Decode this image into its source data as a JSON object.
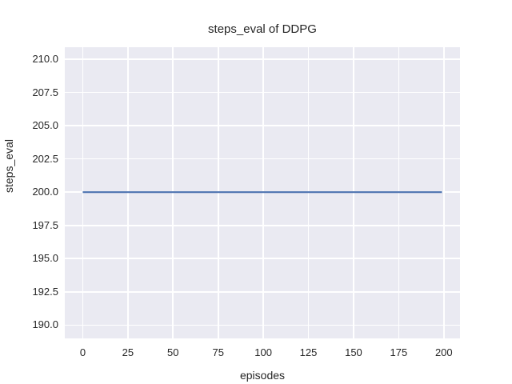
{
  "chart_data": {
    "type": "line",
    "title": "steps_eval of DDPG",
    "xlabel": "episodes",
    "ylabel": "steps_eval",
    "series": [
      {
        "name": "DDPG",
        "x": [
          0,
          199
        ],
        "y": [
          200.0,
          200.0
        ],
        "color": "#4c72b0",
        "linewidth": 2.2
      }
    ],
    "xlim": [
      -9.95,
      208.95
    ],
    "ylim": [
      189.0,
      210.9
    ],
    "xticks": {
      "values": [
        0,
        25,
        50,
        75,
        100,
        125,
        150,
        175,
        200
      ],
      "labels": [
        "0",
        "25",
        "50",
        "75",
        "100",
        "125",
        "150",
        "175",
        "200"
      ]
    },
    "yticks": {
      "values": [
        190.0,
        192.5,
        195.0,
        197.5,
        200.0,
        202.5,
        205.0,
        207.5,
        210.0
      ],
      "labels": [
        "190.0",
        "192.5",
        "195.0",
        "197.5",
        "200.0",
        "202.5",
        "205.0",
        "207.5",
        "210.0"
      ]
    },
    "grid": true,
    "legend": false,
    "colors": {
      "figure_background": "#ffffff",
      "axes_background": "#eaeaf2",
      "gridline": "#ffffff",
      "line": "#4c72b0",
      "text": "#262626"
    }
  }
}
